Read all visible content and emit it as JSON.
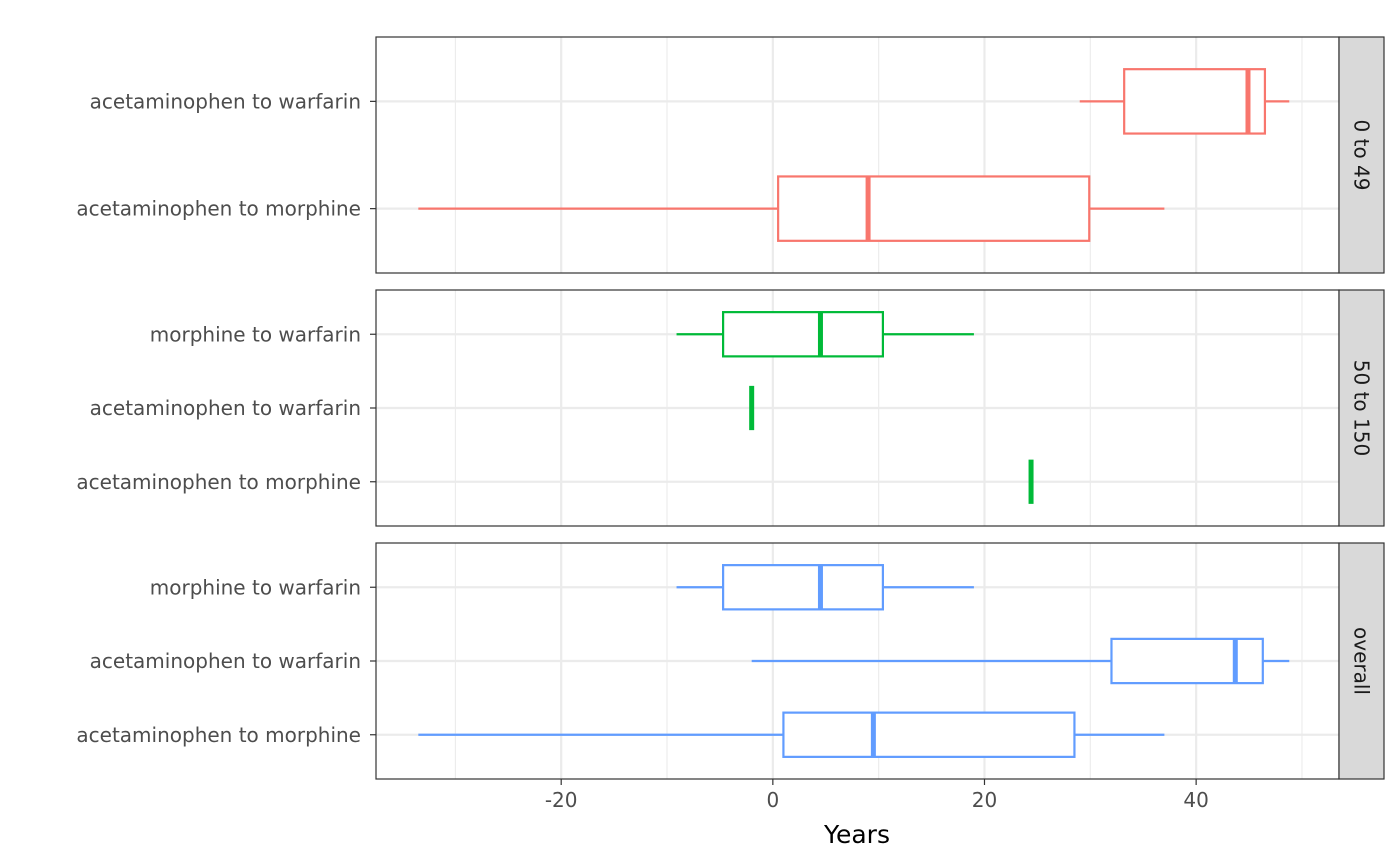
{
  "chart_data": {
    "type": "boxplot",
    "orientation": "horizontal",
    "xlabel": "Years",
    "ylabel": "",
    "title": "",
    "xlim": [
      -37.5,
      53.5
    ],
    "x_ticks": [
      -20,
      0,
      20,
      40
    ],
    "grid": true,
    "legend": "none",
    "facets": [
      {
        "label": "0 to 49",
        "color": "#F8766D",
        "categories": [
          "acetaminophen to morphine",
          "acetaminophen to warfarin"
        ],
        "boxes": [
          {
            "category": "acetaminophen to morphine",
            "min": -33.5,
            "q1": 0.5,
            "median": 9.0,
            "q3": 29.9,
            "max": 37.0
          },
          {
            "category": "acetaminophen to warfarin",
            "min": 29.0,
            "q1": 33.2,
            "median": 44.9,
            "q3": 46.5,
            "max": 48.8
          }
        ]
      },
      {
        "label": "50 to 150",
        "color": "#00BA38",
        "categories": [
          "acetaminophen to morphine",
          "acetaminophen to warfarin",
          "morphine to warfarin"
        ],
        "boxes": [
          {
            "category": "acetaminophen to morphine",
            "min": 24.4,
            "q1": 24.4,
            "median": 24.4,
            "q3": 24.4,
            "max": 24.4
          },
          {
            "category": "acetaminophen to warfarin",
            "min": -2.0,
            "q1": -2.0,
            "median": -2.0,
            "q3": -2.0,
            "max": -2.0
          },
          {
            "category": "morphine to warfarin",
            "min": -9.1,
            "q1": -4.7,
            "median": 4.5,
            "q3": 10.4,
            "max": 19.0
          }
        ]
      },
      {
        "label": "overall",
        "color": "#619CFF",
        "categories": [
          "acetaminophen to morphine",
          "acetaminophen to warfarin",
          "morphine to warfarin"
        ],
        "boxes": [
          {
            "category": "acetaminophen to morphine",
            "min": -33.5,
            "q1": 1.0,
            "median": 9.5,
            "q3": 28.5,
            "max": 37.0
          },
          {
            "category": "acetaminophen to warfarin",
            "min": -2.0,
            "q1": 32.0,
            "median": 43.7,
            "q3": 46.3,
            "max": 48.8
          },
          {
            "category": "morphine to warfarin",
            "min": -9.1,
            "q1": -4.7,
            "median": 4.5,
            "q3": 10.4,
            "max": 19.0
          }
        ]
      }
    ]
  }
}
